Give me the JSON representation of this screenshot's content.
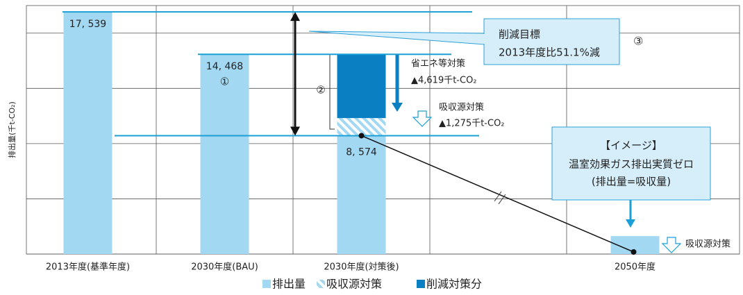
{
  "chart_data": {
    "type": "bar",
    "y_label": "排出量(千t-CO₂)",
    "categories": [
      "2013年度(基準年度)",
      "2030年度(BAU)",
      "2030年度(対策後)",
      null,
      "2050年度"
    ],
    "series": [
      {
        "name": "排出量",
        "color": "#a3d8f2",
        "values": [
          17539,
          14468,
          8574,
          null,
          1300
        ],
        "value_labels": [
          "17, 539",
          "14, 468",
          "8, 574",
          null,
          null
        ]
      },
      {
        "name": "吸収源対策",
        "color": "#a3d8f2",
        "values": [
          null,
          null,
          1275,
          null,
          null
        ]
      },
      {
        "name": "削減対策分",
        "color": "#0a7fc2",
        "values": [
          null,
          null,
          4619,
          null,
          null
        ]
      }
    ],
    "ylim": [
      0,
      18000
    ],
    "yticks": [
      0,
      4000,
      8000,
      12000,
      16000
    ],
    "grid": true,
    "stacked": true,
    "annotations": {
      "bau_mark": "①",
      "bracket_mark": "②",
      "target_mark": "③",
      "target_title": "削減目標",
      "target_text": "2013年度比51.1%減",
      "saving_title": "省エネ等対策",
      "saving_value": "▲4,619千t-CO₂",
      "sink_title": "吸収源対策",
      "sink_value": "▲1,275千t-CO₂",
      "image_title": "【イメージ】",
      "image_line1": "温室効果ガス排出実質ゼロ",
      "image_line2": "(排出量=吸収量)",
      "sink_2050": "吸収源対策"
    }
  }
}
